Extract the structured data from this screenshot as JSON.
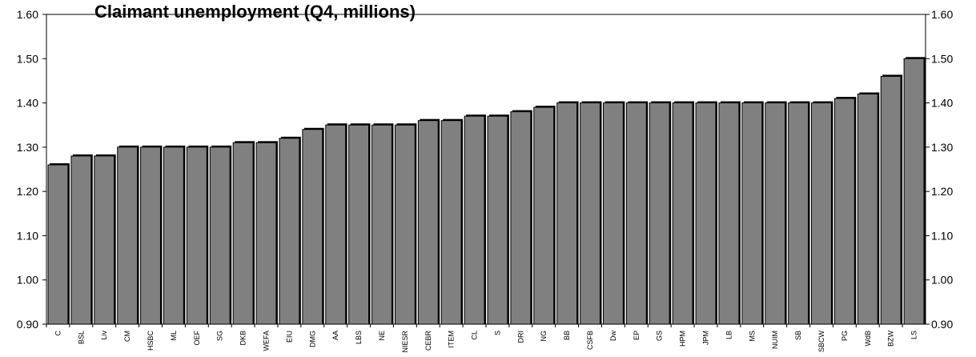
{
  "chart_data": {
    "type": "bar",
    "title": "Claimant unemployment (Q4, millions)",
    "categories": [
      "C",
      "BSL",
      "Liv",
      "CM",
      "HSBC",
      "ML",
      "OEF",
      "SG",
      "DKB",
      "WEFA",
      "EIU",
      "DMG",
      "AA",
      "LBS",
      "NE",
      "NIESR",
      "CEBR",
      "ITEM",
      "CL",
      "S",
      "DRI",
      "NG",
      "BB",
      "CSFB",
      "Dw",
      "EP",
      "GS",
      "HPM",
      "JPM",
      "LB",
      "MS",
      "NUIM",
      "SB",
      "SBCW",
      "PG",
      "WdB",
      "BZW",
      "LS"
    ],
    "values": [
      1.26,
      1.28,
      1.28,
      1.3,
      1.3,
      1.3,
      1.3,
      1.3,
      1.31,
      1.31,
      1.32,
      1.34,
      1.35,
      1.35,
      1.35,
      1.35,
      1.36,
      1.36,
      1.37,
      1.37,
      1.38,
      1.39,
      1.4,
      1.4,
      1.4,
      1.4,
      1.4,
      1.4,
      1.4,
      1.4,
      1.4,
      1.4,
      1.4,
      1.4,
      1.41,
      1.42,
      1.46,
      1.5
    ],
    "ylim": [
      0.9,
      1.6
    ],
    "yticks": [
      "0.90",
      "1.00",
      "1.10",
      "1.20",
      "1.30",
      "1.40",
      "1.50",
      "1.60"
    ],
    "grid": false,
    "legend": "none",
    "colors": {
      "bar_fill": "#808080",
      "bar_stroke": "#000000",
      "axis": "#000000"
    }
  }
}
